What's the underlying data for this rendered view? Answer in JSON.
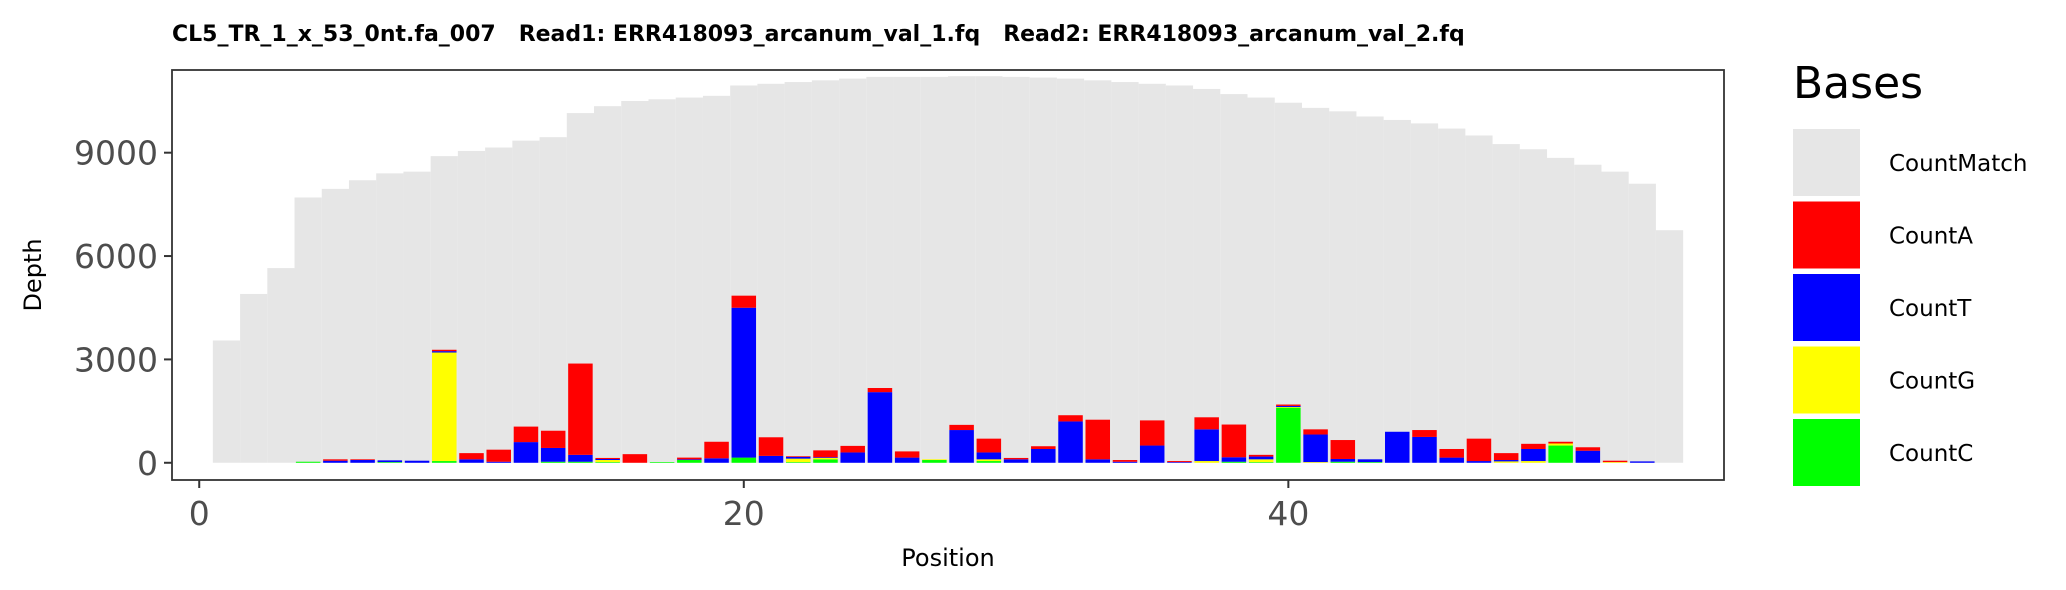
{
  "chart_data": {
    "type": "bar",
    "title": "CL5_TR_1_x_53_0nt.fa_007   Read1: ERR418093_arcanum_val_1.fq   Read2: ERR418093_arcanum_val_2.fq",
    "xlabel": "Position",
    "ylabel": "Depth",
    "xlim": [
      -1,
      56
    ],
    "ylim": [
      -500,
      11400
    ],
    "xticks": [
      0,
      20,
      40
    ],
    "xtick_labels": [
      "0",
      "20",
      "40"
    ],
    "yticks": [
      0,
      3000,
      6000,
      9000
    ],
    "ytick_labels": [
      "0",
      "3000",
      "6000",
      "9000"
    ],
    "grid": false,
    "legend": {
      "title": "Bases",
      "position": "right"
    },
    "x": [
      1,
      2,
      3,
      4,
      5,
      6,
      7,
      8,
      9,
      10,
      11,
      12,
      13,
      14,
      15,
      16,
      17,
      18,
      19,
      20,
      21,
      22,
      23,
      24,
      25,
      26,
      27,
      28,
      29,
      30,
      31,
      32,
      33,
      34,
      35,
      36,
      37,
      38,
      39,
      40,
      41,
      42,
      43,
      44,
      45,
      46,
      47,
      48,
      49,
      50,
      51,
      52,
      53,
      54
    ],
    "series": [
      {
        "name": "CountMatch",
        "color": "#e6e6e6",
        "values": [
          3550,
          4900,
          5650,
          7700,
          7950,
          8200,
          8400,
          8450,
          8900,
          9050,
          9150,
          9350,
          9450,
          10150,
          10350,
          10500,
          10550,
          10600,
          10650,
          10950,
          11000,
          11050,
          11100,
          11150,
          11200,
          11200,
          11200,
          11220,
          11220,
          11200,
          11180,
          11150,
          11100,
          11050,
          11000,
          10950,
          10850,
          10700,
          10600,
          10450,
          10300,
          10200,
          10050,
          9950,
          9850,
          9700,
          9500,
          9250,
          9100,
          8850,
          8650,
          8450,
          8100,
          6750
        ]
      },
      {
        "name": "CountA",
        "color": "#ff0000",
        "values": [
          0,
          0,
          0,
          0,
          40,
          20,
          0,
          0,
          40,
          180,
          350,
          450,
          500,
          2650,
          30,
          250,
          0,
          50,
          480,
          350,
          540,
          20,
          200,
          190,
          120,
          180,
          0,
          150,
          400,
          40,
          80,
          180,
          1150,
          50,
          730,
          30,
          350,
          950,
          50,
          40,
          150,
          550,
          0,
          0,
          200,
          250,
          650,
          200,
          150,
          50,
          100,
          40,
          0,
          0
        ]
      },
      {
        "name": "CountT",
        "color": "#0000ff",
        "values": [
          0,
          0,
          0,
          0,
          60,
          80,
          50,
          60,
          40,
          100,
          30,
          600,
          400,
          200,
          30,
          0,
          0,
          20,
          130,
          4350,
          200,
          50,
          20,
          300,
          2050,
          150,
          0,
          950,
          200,
          100,
          400,
          1200,
          100,
          30,
          500,
          20,
          920,
          130,
          80,
          30,
          800,
          80,
          80,
          900,
          750,
          150,
          50,
          40,
          350,
          0,
          350,
          0,
          40,
          0
        ]
      },
      {
        "name": "CountG",
        "color": "#ffff00",
        "values": [
          0,
          0,
          0,
          0,
          0,
          0,
          0,
          0,
          3150,
          0,
          0,
          0,
          0,
          0,
          60,
          0,
          0,
          0,
          0,
          0,
          0,
          100,
          40,
          0,
          0,
          0,
          20,
          0,
          50,
          0,
          0,
          0,
          0,
          0,
          0,
          0,
          50,
          0,
          80,
          20,
          20,
          0,
          0,
          0,
          0,
          0,
          0,
          40,
          50,
          60,
          0,
          20,
          0,
          0
        ]
      },
      {
        "name": "CountC",
        "color": "#00ff00",
        "values": [
          0,
          0,
          0,
          30,
          0,
          0,
          20,
          0,
          50,
          0,
          0,
          0,
          30,
          30,
          20,
          0,
          20,
          80,
          0,
          150,
          0,
          20,
          100,
          0,
          0,
          0,
          80,
          0,
          50,
          0,
          0,
          0,
          0,
          0,
          0,
          0,
          0,
          30,
          20,
          1600,
          0,
          30,
          20,
          0,
          0,
          0,
          0,
          0,
          0,
          500,
          0,
          0,
          0,
          0
        ]
      }
    ]
  }
}
